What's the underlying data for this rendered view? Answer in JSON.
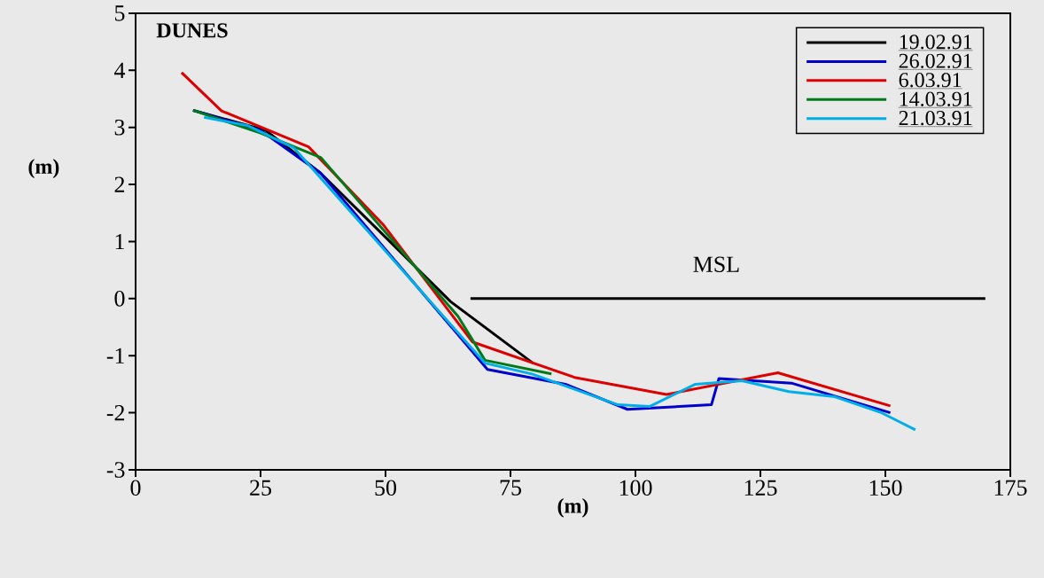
{
  "chart_data": {
    "type": "line",
    "title": "DUNES",
    "xlabel": "(m)",
    "ylabel": "(m)",
    "xlim": [
      0,
      175
    ],
    "ylim": [
      -3,
      5
    ],
    "xticks": [
      0,
      25,
      50,
      75,
      100,
      125,
      150,
      175
    ],
    "yticks": [
      -3,
      -2,
      -1,
      0,
      1,
      2,
      3,
      4,
      5
    ],
    "grid": false,
    "legend": "top right",
    "line_style": "solid",
    "marker": "none",
    "annotations": [
      "MSL"
    ],
    "series": [
      {
        "name": "19.02.91",
        "color": "#000000",
        "x": [
          11.5,
          26,
          37,
          63,
          79.5
        ],
        "values": [
          3.3,
          2.95,
          2.2,
          -0.05,
          -1.13
        ]
      },
      {
        "name": "26.02.91",
        "color": "#0000cc",
        "x": [
          11.5,
          25,
          37,
          70.4,
          86,
          98.4,
          115.2,
          116.7,
          131.2,
          151
        ],
        "values": [
          3.3,
          2.95,
          2.2,
          -1.24,
          -1.5,
          -1.94,
          -1.86,
          -1.4,
          -1.48,
          -2.0
        ]
      },
      {
        "name": "6.03.91",
        "color": "#dd0000",
        "x": [
          9.2,
          17.2,
          34.6,
          49.5,
          67.4,
          87.8,
          106.2,
          128.5,
          151
        ],
        "values": [
          3.96,
          3.29,
          2.66,
          1.3,
          -0.76,
          -1.38,
          -1.68,
          -1.3,
          -1.88
        ]
      },
      {
        "name": "14.03.91",
        "color": "#007a1a",
        "x": [
          11.5,
          25,
          37.1,
          64.5,
          69.9,
          83.2
        ],
        "values": [
          3.3,
          2.9,
          2.47,
          -0.31,
          -1.08,
          -1.32
        ]
      },
      {
        "name": "21.03.91",
        "color": "#00aee8",
        "x": [
          13.7,
          22.5,
          31.7,
          69.9,
          79.3,
          96.5,
          102.8,
          112,
          121.3,
          130.7,
          139.9,
          149,
          156
        ],
        "values": [
          3.18,
          3.03,
          2.64,
          -1.13,
          -1.32,
          -1.86,
          -1.89,
          -1.5,
          -1.44,
          -1.63,
          -1.72,
          -1.99,
          -2.3
        ]
      },
      {
        "color": "#000000",
        "x": [
          67,
          170
        ],
        "values": [
          0,
          0
        ]
      }
    ]
  }
}
